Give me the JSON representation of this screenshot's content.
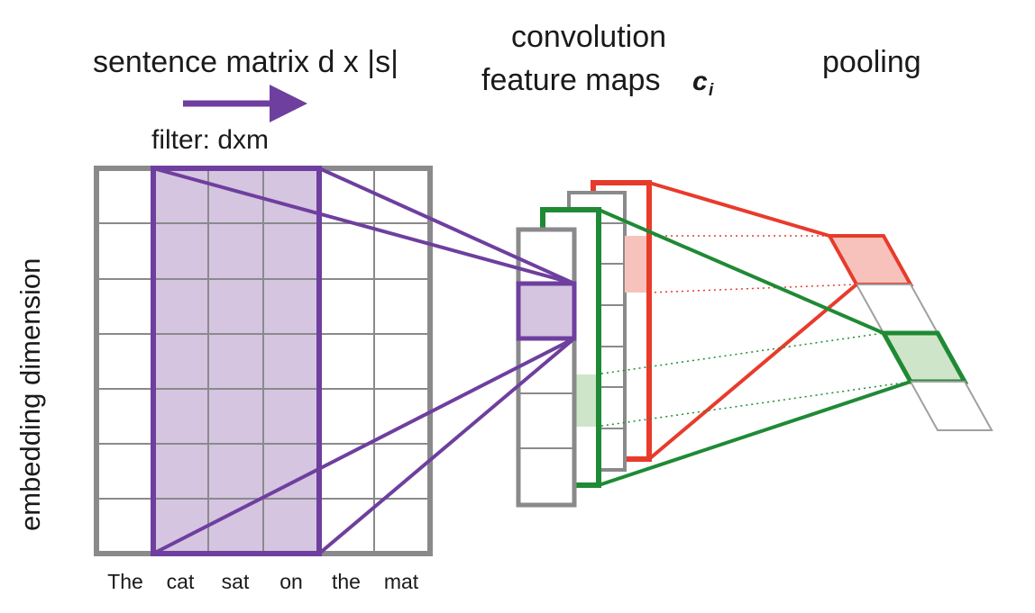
{
  "headings": {
    "sentence_matrix": "sentence matrix d x |s|",
    "convolution": "convolution",
    "feature_maps": "feature maps",
    "feature_map_symbol": "c",
    "feature_map_subscript": "i",
    "pooling": "pooling",
    "filter": "filter: dxm"
  },
  "axis_label": "embedding dimension",
  "words": [
    "The",
    "cat",
    "sat",
    "on",
    "the",
    "mat"
  ],
  "colors": {
    "grid": "#8a8a8c",
    "filter": "#6e3f9e",
    "filter_fill": "#d5c5e0",
    "red": "#e83b2b",
    "red_fill": "#f7c2bb",
    "green": "#1f8a35",
    "green_fill": "#cfe5c9"
  }
}
